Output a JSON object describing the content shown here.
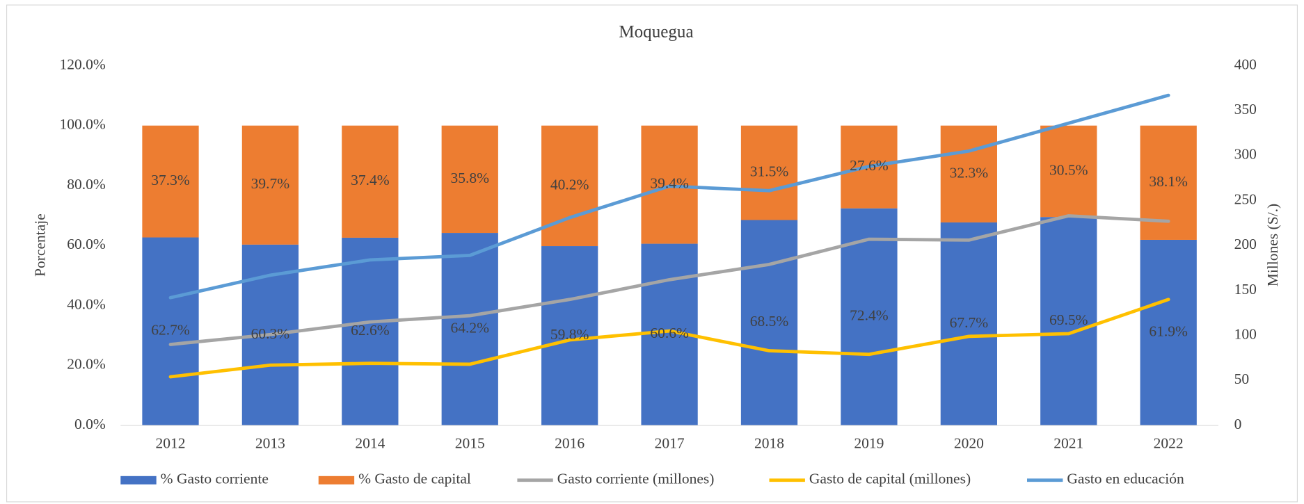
{
  "chart_data": {
    "type": "bar",
    "title": "Moquegua",
    "y_label": "Porcentaje",
    "y2_label": "Millones  (S/.)",
    "categories": [
      "2012",
      "2013",
      "2014",
      "2015",
      "2016",
      "2017",
      "2018",
      "2019",
      "2020",
      "2021",
      "2022"
    ],
    "series": [
      {
        "name": "% Gasto corriente",
        "type": "bar",
        "color": "#4472c4",
        "values": [
          62.7,
          60.3,
          62.6,
          64.2,
          59.8,
          60.6,
          68.5,
          72.4,
          67.7,
          69.5,
          61.9
        ],
        "value_labels": [
          "62.7%",
          "60.3%",
          "62.6%",
          "64.2%",
          "59.8%",
          "60.6%",
          "68.5%",
          "72.4%",
          "67.7%",
          "69.5%",
          "61.9%"
        ]
      },
      {
        "name": "% Gasto de capital",
        "type": "bar",
        "color": "#ed7d31",
        "values": [
          37.3,
          39.7,
          37.4,
          35.8,
          40.2,
          39.4,
          31.5,
          27.6,
          32.3,
          30.5,
          38.1
        ],
        "value_labels": [
          "37.3%",
          "39.7%",
          "37.4%",
          "35.8%",
          "40.2%",
          "39.4%",
          "31.5%",
          "27.6%",
          "32.3%",
          "30.5%",
          "38.1%"
        ]
      },
      {
        "name": "Gasto corriente (millones)",
        "type": "line",
        "axis": "y2",
        "color": "#a5a5a5",
        "values": [
          90,
          101,
          115,
          122,
          140,
          162,
          179,
          207,
          206,
          233,
          227
        ]
      },
      {
        "name": "Gasto de capital (millones)",
        "type": "line",
        "axis": "y2",
        "color": "#ffc000",
        "values": [
          54,
          67,
          69,
          68,
          95,
          105,
          83,
          79,
          99,
          102,
          140
        ]
      },
      {
        "name": "Gasto en educación",
        "type": "line",
        "axis": "y2",
        "color": "#5b9bd5",
        "values": [
          142,
          167,
          184,
          189,
          231,
          266,
          261,
          288,
          305,
          336,
          367
        ]
      }
    ],
    "ylim": [
      0,
      120
    ],
    "yticks": [
      {
        "value": 0,
        "label": "0.0%"
      },
      {
        "value": 20,
        "label": "20.0%"
      },
      {
        "value": 40,
        "label": "40.0%"
      },
      {
        "value": 60,
        "label": "60.0%"
      },
      {
        "value": 80,
        "label": "80.0%"
      },
      {
        "value": 100,
        "label": "100.0%"
      },
      {
        "value": 120,
        "label": "120.0%"
      }
    ],
    "y2lim": [
      0,
      400
    ],
    "y2ticks": [
      0,
      50,
      100,
      150,
      200,
      250,
      300,
      350,
      400
    ],
    "stacked": true,
    "legend": "bottom"
  }
}
